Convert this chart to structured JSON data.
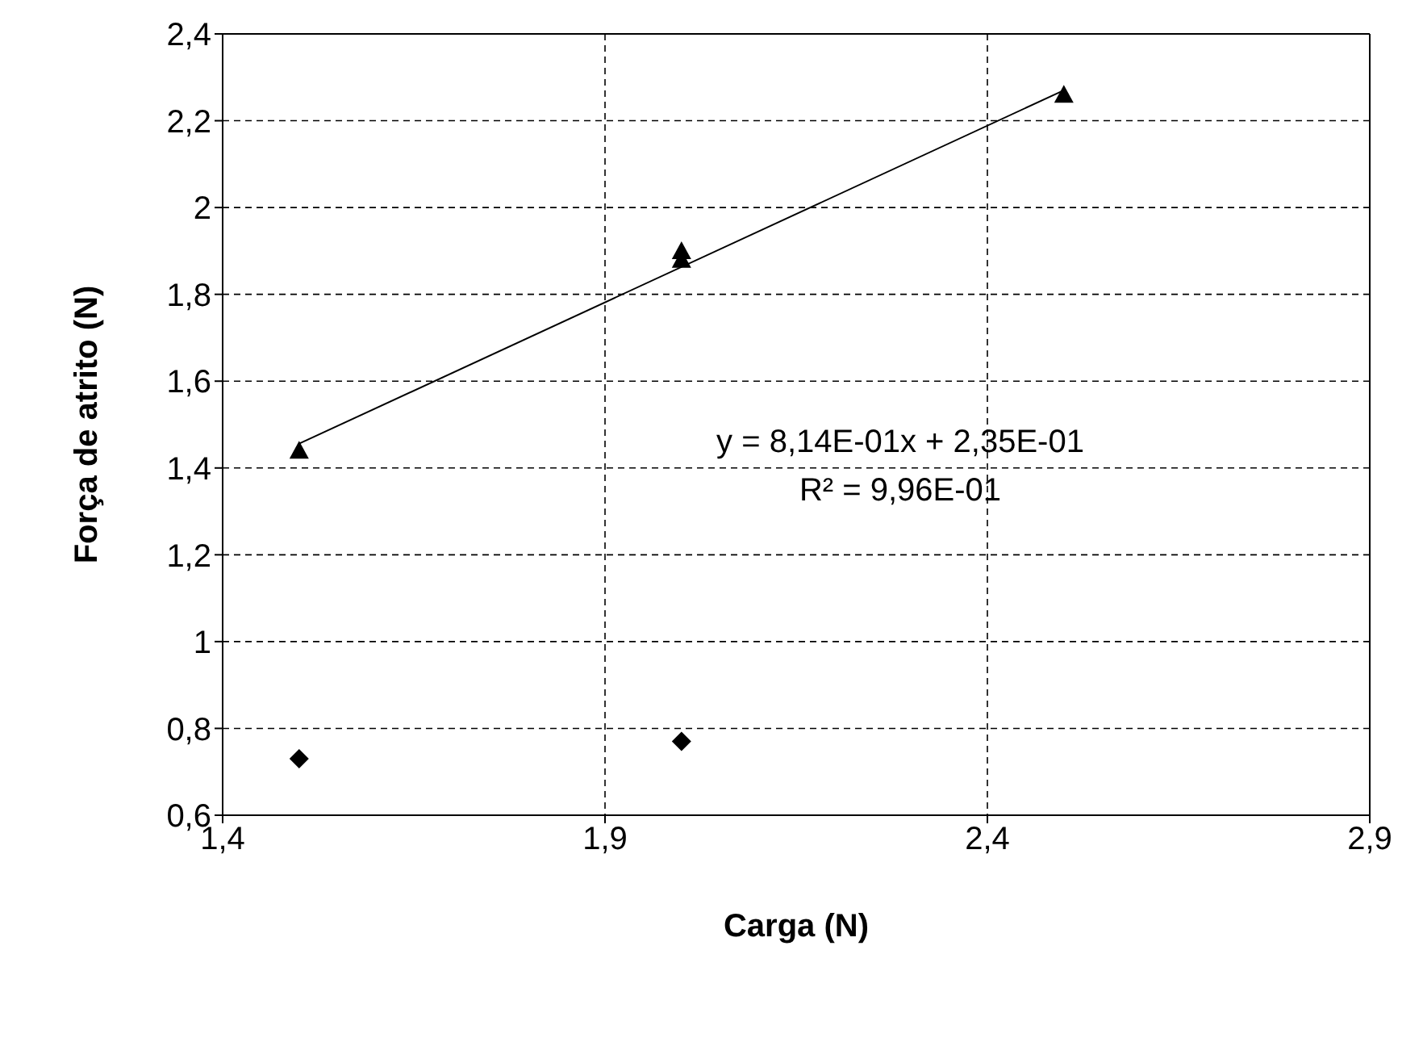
{
  "chart_data": {
    "type": "scatter",
    "xlabel": "Carga (N)",
    "ylabel": "Força de atrito (N)",
    "xlim": [
      1.4,
      2.9
    ],
    "xticks": [
      {
        "value": 1.4,
        "label": "1,4"
      },
      {
        "value": 1.9,
        "label": "1,9"
      },
      {
        "value": 2.4,
        "label": "2,4"
      },
      {
        "value": 2.9,
        "label": "2,9"
      }
    ],
    "ylim": [
      0.6,
      2.4
    ],
    "yticks": [
      {
        "value": 0.6,
        "label": "0,6"
      },
      {
        "value": 0.8,
        "label": "0,8"
      },
      {
        "value": 1,
        "label": "1"
      },
      {
        "value": 1.2,
        "label": "1,2"
      },
      {
        "value": 1.4,
        "label": "1,4"
      },
      {
        "value": 1.6,
        "label": "1,6"
      },
      {
        "value": 1.8,
        "label": "1,8"
      },
      {
        "value": 2,
        "label": "2"
      },
      {
        "value": 2.2,
        "label": "2,2"
      },
      {
        "value": 2.4,
        "label": "2,4"
      }
    ],
    "grid": true,
    "series": [
      {
        "marker": "triangle",
        "color": "#000000",
        "x": [
          1.5,
          2.0,
          2.0,
          2.5
        ],
        "values": [
          1.44,
          1.9,
          1.88,
          2.26
        ]
      },
      {
        "marker": "diamond",
        "color": "#000000",
        "x": [
          1.5,
          2.0
        ],
        "values": [
          0.73,
          0.77
        ]
      },
      {
        "type": "line",
        "marker": "none",
        "color": "#000000",
        "x": [
          1.5,
          2.5
        ],
        "values": [
          1.456,
          2.27
        ]
      }
    ],
    "annotations": [
      "y = 8,14E-01x + 2,35E-01",
      "R² = 9,96E-01"
    ]
  }
}
